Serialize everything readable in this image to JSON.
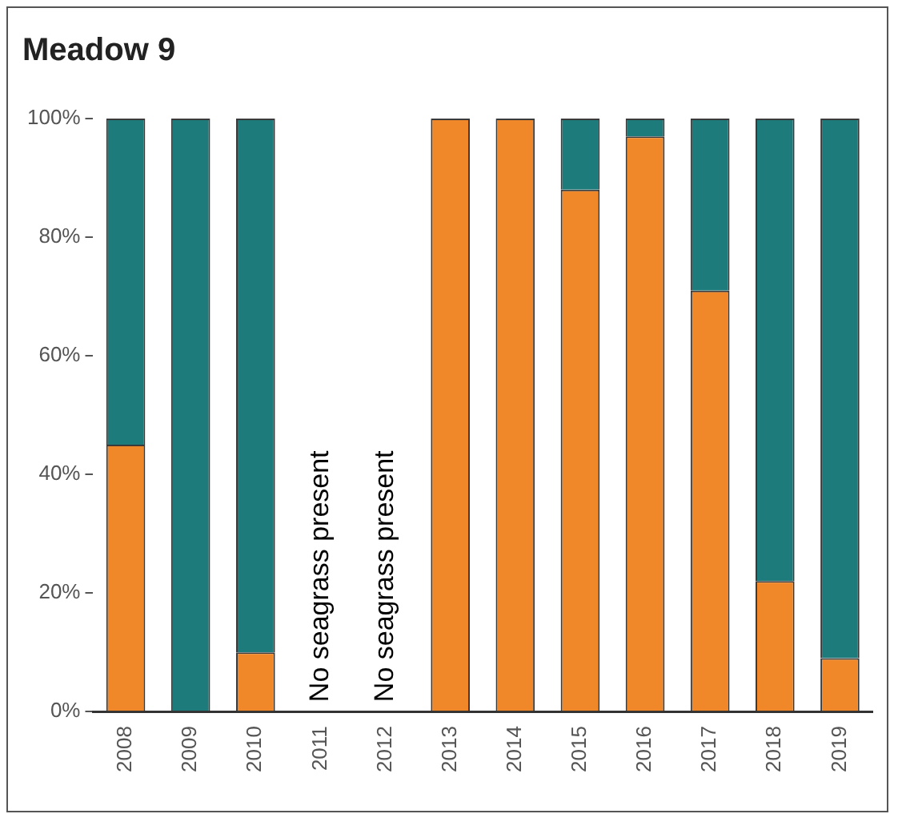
{
  "chart_data": {
    "type": "bar",
    "title": "Meadow 9",
    "stacked": true,
    "categories": [
      "2008",
      "2009",
      "2010",
      "2011",
      "2012",
      "2013",
      "2014",
      "2015",
      "2016",
      "2017",
      "2018",
      "2019"
    ],
    "series": [
      {
        "color": "#f0882a",
        "values": [
          45,
          0,
          10,
          null,
          null,
          100,
          100,
          88,
          97,
          71,
          22,
          9
        ]
      },
      {
        "color": "#1e7b7b",
        "values": [
          55,
          100,
          90,
          null,
          null,
          0,
          0,
          12,
          3,
          29,
          78,
          91
        ]
      }
    ],
    "ylim": [
      0,
      100
    ],
    "yticks": [
      {
        "value": 0,
        "label": "0%"
      },
      {
        "value": 20,
        "label": "20%"
      },
      {
        "value": 40,
        "label": "40%"
      },
      {
        "value": 60,
        "label": "60%"
      },
      {
        "value": 80,
        "label": "80%"
      },
      {
        "value": 100,
        "label": "100%"
      }
    ],
    "grid": false,
    "legend": false,
    "annotations": [
      "No seagrass present",
      "No seagrass present"
    ]
  }
}
